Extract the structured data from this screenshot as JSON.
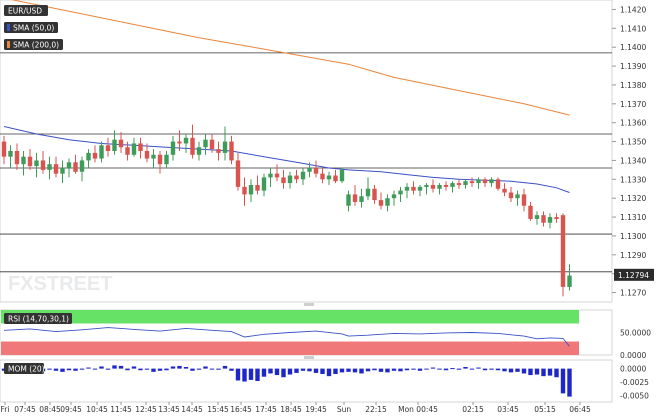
{
  "chart_data": {
    "type": "candlestick",
    "symbol": "EUR/USD",
    "indicators": {
      "sma_fast_label": "SMA (50,0)",
      "sma_slow_label": "SMA (200,0)",
      "rsi_label": "RSI (14,70,30,1)",
      "mom_label": "MOM (20)"
    },
    "colors": {
      "up": "#3f9b5a",
      "down": "#d9534f",
      "sma_fast": "#3a50c8",
      "sma_slow": "#e8853d",
      "rsi_over": "#66e266",
      "rsi_under": "#f07878",
      "mom_bar": "#1f27c8",
      "last_price_box": "#2b2b2b"
    },
    "price_axis": {
      "ylim": [
        1.1265,
        1.1425
      ],
      "ticks": [
        "1.1420",
        "1.1410",
        "1.1400",
        "1.1390",
        "1.1380",
        "1.1370",
        "1.1360",
        "1.1350",
        "1.1340",
        "1.1330",
        "1.1320",
        "1.1310",
        "1.1300",
        "1.1290",
        "1.1280",
        "1.1270"
      ],
      "last_price": "1.12794"
    },
    "horizontal_levels": [
      1.1397,
      1.1354,
      1.1336,
      1.1301,
      1.1281
    ],
    "time_labels": [
      "Fri",
      "07:45",
      "08:45",
      "09:45",
      "10:45",
      "11:45",
      "12:45",
      "13:45",
      "14:45",
      "15:45",
      "16:45",
      "17:45",
      "18:45",
      "19:45",
      "Sun",
      "22:15",
      "Mon 00:45",
      "02:15",
      "03:45",
      "05:15",
      "06:45"
    ],
    "candles": [
      {
        "o": 1.135,
        "h": 1.1353,
        "l": 1.1338,
        "c": 1.1342
      },
      {
        "o": 1.1342,
        "h": 1.1348,
        "l": 1.1336,
        "c": 1.1345
      },
      {
        "o": 1.1345,
        "h": 1.1349,
        "l": 1.1335,
        "c": 1.1338
      },
      {
        "o": 1.1338,
        "h": 1.1345,
        "l": 1.1332,
        "c": 1.1342
      },
      {
        "o": 1.1342,
        "h": 1.1346,
        "l": 1.1335,
        "c": 1.1337
      },
      {
        "o": 1.1337,
        "h": 1.1344,
        "l": 1.1331,
        "c": 1.134
      },
      {
        "o": 1.134,
        "h": 1.1345,
        "l": 1.1333,
        "c": 1.1335
      },
      {
        "o": 1.1335,
        "h": 1.1342,
        "l": 1.133,
        "c": 1.1338
      },
      {
        "o": 1.1338,
        "h": 1.1342,
        "l": 1.1331,
        "c": 1.1333
      },
      {
        "o": 1.1333,
        "h": 1.134,
        "l": 1.1328,
        "c": 1.1336
      },
      {
        "o": 1.1336,
        "h": 1.1341,
        "l": 1.1331,
        "c": 1.1339
      },
      {
        "o": 1.1339,
        "h": 1.1343,
        "l": 1.1333,
        "c": 1.1334
      },
      {
        "o": 1.1334,
        "h": 1.1342,
        "l": 1.1329,
        "c": 1.134
      },
      {
        "o": 1.134,
        "h": 1.1346,
        "l": 1.1336,
        "c": 1.1344
      },
      {
        "o": 1.1344,
        "h": 1.1348,
        "l": 1.1339,
        "c": 1.1341
      },
      {
        "o": 1.1341,
        "h": 1.135,
        "l": 1.1339,
        "c": 1.1348
      },
      {
        "o": 1.1348,
        "h": 1.1352,
        "l": 1.1342,
        "c": 1.1345
      },
      {
        "o": 1.1345,
        "h": 1.1356,
        "l": 1.1343,
        "c": 1.1351
      },
      {
        "o": 1.1351,
        "h": 1.1355,
        "l": 1.1344,
        "c": 1.1347
      },
      {
        "o": 1.1347,
        "h": 1.135,
        "l": 1.134,
        "c": 1.1343
      },
      {
        "o": 1.1343,
        "h": 1.1352,
        "l": 1.1342,
        "c": 1.1349
      },
      {
        "o": 1.1349,
        "h": 1.1352,
        "l": 1.1341,
        "c": 1.1345
      },
      {
        "o": 1.1345,
        "h": 1.1349,
        "l": 1.1339,
        "c": 1.1341
      },
      {
        "o": 1.1341,
        "h": 1.1346,
        "l": 1.1336,
        "c": 1.1343
      },
      {
        "o": 1.1343,
        "h": 1.1345,
        "l": 1.1333,
        "c": 1.1338
      },
      {
        "o": 1.1338,
        "h": 1.1345,
        "l": 1.1336,
        "c": 1.1343
      },
      {
        "o": 1.1343,
        "h": 1.1353,
        "l": 1.134,
        "c": 1.135
      },
      {
        "o": 1.135,
        "h": 1.1356,
        "l": 1.1345,
        "c": 1.1349
      },
      {
        "o": 1.1349,
        "h": 1.1354,
        "l": 1.1344,
        "c": 1.1352
      },
      {
        "o": 1.1352,
        "h": 1.1359,
        "l": 1.1341,
        "c": 1.1343
      },
      {
        "o": 1.1343,
        "h": 1.135,
        "l": 1.134,
        "c": 1.1347
      },
      {
        "o": 1.1347,
        "h": 1.1354,
        "l": 1.1343,
        "c": 1.1351
      },
      {
        "o": 1.1351,
        "h": 1.1354,
        "l": 1.1344,
        "c": 1.1346
      },
      {
        "o": 1.1346,
        "h": 1.135,
        "l": 1.134,
        "c": 1.1344
      },
      {
        "o": 1.1344,
        "h": 1.1358,
        "l": 1.134,
        "c": 1.135
      },
      {
        "o": 1.135,
        "h": 1.1353,
        "l": 1.1338,
        "c": 1.134
      },
      {
        "o": 1.134,
        "h": 1.1344,
        "l": 1.1324,
        "c": 1.1326
      },
      {
        "o": 1.1326,
        "h": 1.1331,
        "l": 1.1316,
        "c": 1.1322
      },
      {
        "o": 1.1322,
        "h": 1.133,
        "l": 1.1318,
        "c": 1.1327
      },
      {
        "o": 1.1327,
        "h": 1.1332,
        "l": 1.1322,
        "c": 1.1324
      },
      {
        "o": 1.1324,
        "h": 1.1333,
        "l": 1.1321,
        "c": 1.1331
      },
      {
        "o": 1.1331,
        "h": 1.1336,
        "l": 1.1326,
        "c": 1.1333
      },
      {
        "o": 1.1333,
        "h": 1.1338,
        "l": 1.1329,
        "c": 1.1331
      },
      {
        "o": 1.1331,
        "h": 1.1335,
        "l": 1.1325,
        "c": 1.1328
      },
      {
        "o": 1.1328,
        "h": 1.1334,
        "l": 1.1325,
        "c": 1.1332
      },
      {
        "o": 1.1332,
        "h": 1.1335,
        "l": 1.1328,
        "c": 1.133
      },
      {
        "o": 1.133,
        "h": 1.1336,
        "l": 1.1327,
        "c": 1.1334
      },
      {
        "o": 1.1334,
        "h": 1.1339,
        "l": 1.1331,
        "c": 1.1336
      },
      {
        "o": 1.1336,
        "h": 1.134,
        "l": 1.1331,
        "c": 1.1333
      },
      {
        "o": 1.1333,
        "h": 1.1336,
        "l": 1.1328,
        "c": 1.133
      },
      {
        "o": 1.133,
        "h": 1.1334,
        "l": 1.1327,
        "c": 1.1332
      },
      {
        "o": 1.1332,
        "h": 1.1335,
        "l": 1.1328,
        "c": 1.1329
      },
      {
        "o": 1.1329,
        "h": 1.1336,
        "l": 1.1328,
        "c": 1.1335
      },
      {
        "o": 1.1316,
        "h": 1.1324,
        "l": 1.1313,
        "c": 1.1322
      },
      {
        "o": 1.1322,
        "h": 1.1327,
        "l": 1.1316,
        "c": 1.1318
      },
      {
        "o": 1.1318,
        "h": 1.1325,
        "l": 1.1315,
        "c": 1.1321
      },
      {
        "o": 1.1321,
        "h": 1.1331,
        "l": 1.1319,
        "c": 1.1325
      },
      {
        "o": 1.1325,
        "h": 1.1327,
        "l": 1.1317,
        "c": 1.1319
      },
      {
        "o": 1.1319,
        "h": 1.1323,
        "l": 1.1314,
        "c": 1.1316
      },
      {
        "o": 1.1316,
        "h": 1.1322,
        "l": 1.1313,
        "c": 1.132
      },
      {
        "o": 1.132,
        "h": 1.1324,
        "l": 1.1316,
        "c": 1.1322
      },
      {
        "o": 1.1322,
        "h": 1.1326,
        "l": 1.1318,
        "c": 1.1324
      },
      {
        "o": 1.1324,
        "h": 1.1328,
        "l": 1.132,
        "c": 1.1326
      },
      {
        "o": 1.1326,
        "h": 1.1329,
        "l": 1.1322,
        "c": 1.1324
      },
      {
        "o": 1.1324,
        "h": 1.1327,
        "l": 1.1321,
        "c": 1.1326
      },
      {
        "o": 1.1326,
        "h": 1.1328,
        "l": 1.1322,
        "c": 1.1327
      },
      {
        "o": 1.1327,
        "h": 1.133,
        "l": 1.1323,
        "c": 1.1325
      },
      {
        "o": 1.1325,
        "h": 1.1328,
        "l": 1.1322,
        "c": 1.1327
      },
      {
        "o": 1.1327,
        "h": 1.1329,
        "l": 1.1324,
        "c": 1.1326
      },
      {
        "o": 1.1326,
        "h": 1.1329,
        "l": 1.1323,
        "c": 1.1328
      },
      {
        "o": 1.1328,
        "h": 1.133,
        "l": 1.1325,
        "c": 1.1327
      },
      {
        "o": 1.1327,
        "h": 1.133,
        "l": 1.1325,
        "c": 1.1329
      },
      {
        "o": 1.1329,
        "h": 1.1331,
        "l": 1.1326,
        "c": 1.1328
      },
      {
        "o": 1.1328,
        "h": 1.1331,
        "l": 1.1325,
        "c": 1.133
      },
      {
        "o": 1.133,
        "h": 1.1331,
        "l": 1.1326,
        "c": 1.1328
      },
      {
        "o": 1.1328,
        "h": 1.1331,
        "l": 1.1326,
        "c": 1.133
      },
      {
        "o": 1.133,
        "h": 1.1331,
        "l": 1.1324,
        "c": 1.1325
      },
      {
        "o": 1.1325,
        "h": 1.1328,
        "l": 1.1321,
        "c": 1.1323
      },
      {
        "o": 1.1323,
        "h": 1.1326,
        "l": 1.1318,
        "c": 1.132
      },
      {
        "o": 1.132,
        "h": 1.1324,
        "l": 1.1316,
        "c": 1.1322
      },
      {
        "o": 1.1322,
        "h": 1.1325,
        "l": 1.1313,
        "c": 1.1316
      },
      {
        "o": 1.1316,
        "h": 1.1318,
        "l": 1.1308,
        "c": 1.1309
      },
      {
        "o": 1.1309,
        "h": 1.1313,
        "l": 1.1306,
        "c": 1.1311
      },
      {
        "o": 1.1311,
        "h": 1.1313,
        "l": 1.1305,
        "c": 1.1307
      },
      {
        "o": 1.1307,
        "h": 1.1312,
        "l": 1.1304,
        "c": 1.131
      },
      {
        "o": 1.131,
        "h": 1.1312,
        "l": 1.1307,
        "c": 1.1309
      },
      {
        "o": 1.1311,
        "h": 1.1312,
        "l": 1.1268,
        "c": 1.1273
      },
      {
        "o": 1.1273,
        "h": 1.1285,
        "l": 1.1271,
        "c": 1.1279
      }
    ],
    "sma_fast": [
      [
        0,
        1.1358
      ],
      [
        5,
        1.1354
      ],
      [
        10,
        1.1351
      ],
      [
        15,
        1.1349
      ],
      [
        20,
        1.1348
      ],
      [
        25,
        1.1347
      ],
      [
        30,
        1.1346
      ],
      [
        35,
        1.1345
      ],
      [
        40,
        1.1342
      ],
      [
        45,
        1.1339
      ],
      [
        50,
        1.1336
      ],
      [
        53,
        1.1335
      ],
      [
        58,
        1.1334
      ],
      [
        62,
        1.13325
      ],
      [
        66,
        1.1331
      ],
      [
        70,
        1.133
      ],
      [
        74,
        1.13295
      ],
      [
        78,
        1.1329
      ],
      [
        82,
        1.13275
      ],
      [
        85,
        1.13255
      ],
      [
        87,
        1.1323
      ]
    ],
    "sma_slow": [
      [
        0,
        1.1426
      ],
      [
        10,
        1.1419
      ],
      [
        20,
        1.1412
      ],
      [
        30,
        1.1405
      ],
      [
        40,
        1.1399
      ],
      [
        53,
        1.1391
      ],
      [
        60,
        1.1384
      ],
      [
        70,
        1.1377
      ],
      [
        80,
        1.137
      ],
      [
        87,
        1.1364
      ]
    ],
    "rsi": {
      "ylim": [
        0,
        100
      ],
      "ticks": [
        "50.0000",
        "0.0000"
      ],
      "overbought": 70,
      "oversold": 30,
      "values": [
        [
          0,
          55
        ],
        [
          4,
          58
        ],
        [
          8,
          52
        ],
        [
          12,
          56
        ],
        [
          16,
          61
        ],
        [
          20,
          57
        ],
        [
          24,
          53
        ],
        [
          28,
          59
        ],
        [
          32,
          55
        ],
        [
          35,
          52
        ],
        [
          37,
          40
        ],
        [
          40,
          46
        ],
        [
          44,
          50
        ],
        [
          48,
          53
        ],
        [
          52,
          47
        ],
        [
          53,
          42
        ],
        [
          56,
          44
        ],
        [
          60,
          48
        ],
        [
          64,
          47
        ],
        [
          68,
          49
        ],
        [
          72,
          50
        ],
        [
          76,
          48
        ],
        [
          78,
          45
        ],
        [
          80,
          42
        ],
        [
          82,
          36
        ],
        [
          84,
          38
        ],
        [
          86,
          37
        ],
        [
          87,
          19
        ]
      ]
    },
    "mom": {
      "ticks": [
        "0.0000",
        "-0.0025",
        "-0.0050"
      ],
      "ylim": [
        -0.0062,
        0.0016
      ],
      "values": [
        -0.0004,
        -0.0005,
        -0.0003,
        -0.0006,
        -0.0004,
        -0.0003,
        -0.0005,
        -0.0002,
        -0.0004,
        -0.0006,
        -0.0003,
        -0.0004,
        -0.0002,
        0.0002,
        -0.0001,
        0.0004,
        -0.0002,
        0.0006,
        0.0005,
        -0.0003,
        0.0004,
        -0.0003,
        -0.0002,
        -0.0006,
        -0.0004,
        -0.0003,
        0.0004,
        0.0005,
        0.0003,
        -0.0004,
        -0.0002,
        0.0004,
        -0.0001,
        -0.0002,
        0.0005,
        -0.0004,
        -0.0022,
        -0.0024,
        -0.0021,
        -0.0023,
        -0.0015,
        -0.0009,
        -0.0012,
        -0.0016,
        -0.0011,
        -0.0008,
        -0.0004,
        -0.0005,
        -0.0008,
        -0.001,
        -0.0014,
        -0.001,
        -0.0007,
        -0.0006,
        -0.0007,
        -0.0009,
        -0.0005,
        -0.0003,
        -0.0006,
        -0.0007,
        -0.0004,
        -0.0005,
        -0.0003,
        -0.0002,
        -0.0004,
        -0.0001,
        0.0002,
        -0.0001,
        -0.0003,
        0.0001,
        -0.0002,
        0.0003,
        -0.0001,
        0.0002,
        -0.0003,
        -0.0002,
        -0.0003,
        -0.0005,
        -0.0007,
        -0.0006,
        -0.0009,
        -0.0012,
        -0.0011,
        -0.0014,
        -0.0013,
        -0.0016,
        -0.0046,
        -0.0052
      ]
    }
  }
}
